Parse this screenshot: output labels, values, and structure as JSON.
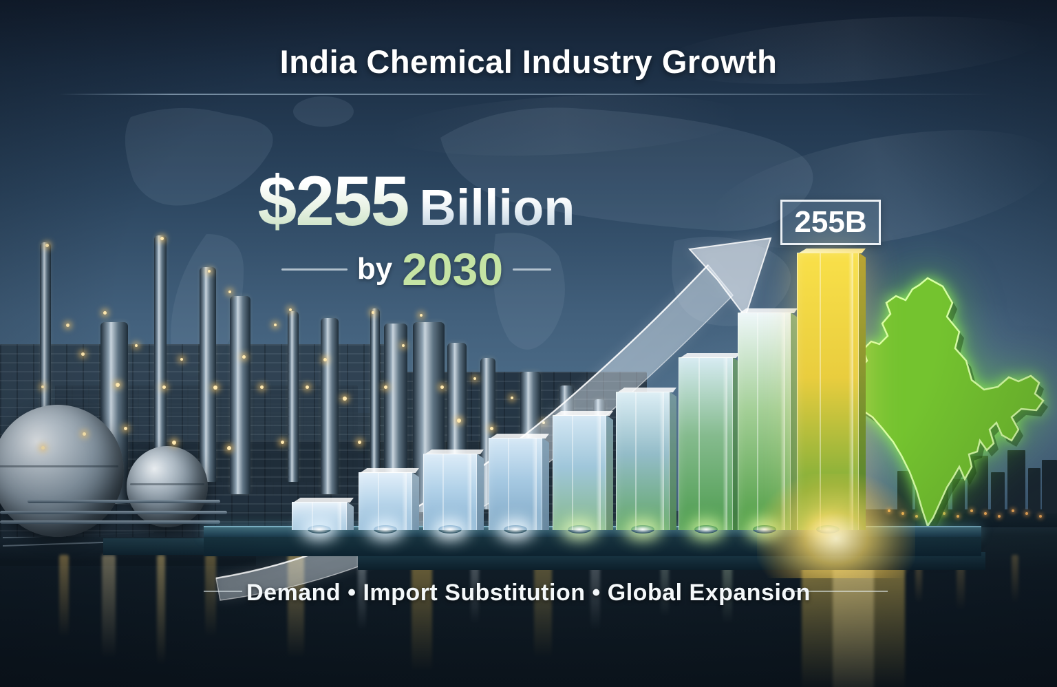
{
  "header": {
    "title": "India Chemical Industry Growth"
  },
  "headline": {
    "amount": "$255",
    "unit": "Billion",
    "preposition": "by",
    "year": "2030"
  },
  "callout": {
    "value_label": "255B"
  },
  "footer": {
    "caption": "Demand • Import Substitution • Global Expansion"
  },
  "colors": {
    "sky_top": "#131f30",
    "sky_mid": "#42607c",
    "accent_green": "#c5e4a4",
    "accent_gold": "#f2cf3c",
    "bar_glass_blue": "#cfe2f2",
    "bar_green": "#4f9d45",
    "india_green": "#74c32f",
    "warm_light": "#ffd98c",
    "platform_teal": "#24485a",
    "water_dark": "#0b141c",
    "text_white": "#ffffff"
  },
  "icons": {
    "india-map": "glowing green India silhouette",
    "growth-arrow": "translucent upward swoosh arrow",
    "chemical-plant": "night refinery with storage spheres and lights",
    "world-map": "faint continents backdrop",
    "city-skyline": "distant lit skyline",
    "water-reflection": "light streaks on water"
  },
  "chart_data": {
    "type": "bar",
    "title": "India Chemical Industry Growth",
    "unit": "USD billions",
    "values": [
      26,
      53,
      70,
      85,
      106,
      127,
      159,
      200,
      255
    ],
    "value_labels": [
      "",
      "",
      "",
      "",
      "",
      "",
      "",
      "",
      "255B"
    ],
    "values_are_estimates_except_final": true,
    "ylim": [
      0,
      255
    ],
    "x_axis_labels_visible": false,
    "legend": false,
    "annotations": [
      "$255 Billion by 2030",
      "255B"
    ],
    "bar_colors": [
      {
        "top": "#e6f1fa",
        "mid": "#c4dcee",
        "bottom": "#9fc3dd",
        "glow": "#e8f6ff"
      },
      {
        "top": "#e2effa",
        "mid": "#bcd8ec",
        "bottom": "#92bad8",
        "glow": "#e8f6ff"
      },
      {
        "top": "#dcecf8",
        "mid": "#b2d2e9",
        "bottom": "#88b2d2",
        "glow": "#eef9ff"
      },
      {
        "top": "#d5e8f6",
        "mid": "#a6c9e2",
        "bottom": "#7fa8c6",
        "glow": "#eef9ff"
      },
      {
        "top": "#d3e7f4",
        "mid": "#9fc6da",
        "bottom": "#86b98c",
        "glow": "#d9f3b8"
      },
      {
        "top": "#dceef5",
        "mid": "#93bcc8",
        "bottom": "#63a868",
        "glow": "#d2f0a8"
      },
      {
        "top": "#d6ebf2",
        "mid": "#85bb8e",
        "bottom": "#4d9c4e",
        "glow": "#c8ee9a"
      },
      {
        "top": "#eef7f9",
        "mid": "#a3cf96",
        "bottom": "#4f9d45",
        "glow": "#d6f59e"
      },
      {
        "top": "#f9e049",
        "mid": "#e9cd3e",
        "bottom": "#5aa338",
        "glow": "#ffe98e"
      }
    ]
  }
}
